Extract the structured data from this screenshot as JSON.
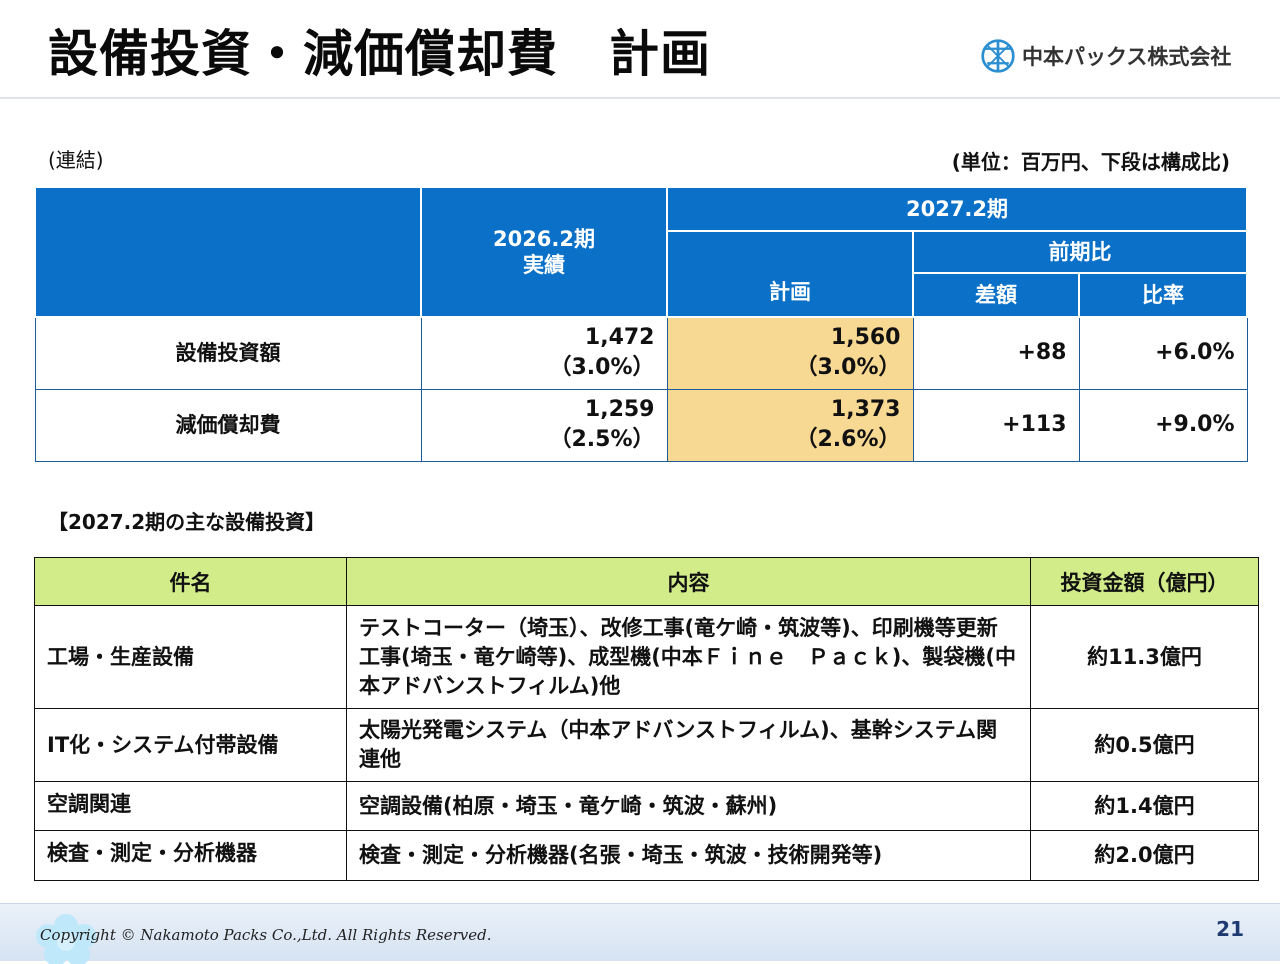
{
  "header": {
    "title": "設備投資・減価償却費　計画",
    "company": "中本パックス株式会社"
  },
  "notes": {
    "scope": "(連結)",
    "unit": "(単位：百万円、下段は構成比)"
  },
  "summary_table": {
    "col_actual": "2026.2期",
    "col_actual_sub": "実績",
    "col_plan_period": "2027.2期",
    "col_plan": "計画",
    "col_yoy": "前期比",
    "col_diff": "差額",
    "col_ratio": "比率",
    "rows": [
      {
        "label": "設備投資額",
        "actual": "1,472",
        "actual_pct": "（3.0%）",
        "plan": "1,560",
        "plan_pct": "（3.0%）",
        "diff": "+88",
        "ratio": "+6.0%"
      },
      {
        "label": "減価償却費",
        "actual": "1,259",
        "actual_pct": "（2.5%）",
        "plan": "1,373",
        "plan_pct": "（2.6%）",
        "diff": "+113",
        "ratio": "+9.0%"
      }
    ]
  },
  "investment_section": {
    "title": "【2027.2期の主な設備投資】",
    "headers": {
      "name": "件名",
      "content": "内容",
      "amount": "投資金額（億円）"
    },
    "rows": [
      {
        "name": "工場・生産設備",
        "content": "テストコーター（埼玉）、改修工事(竜ケ崎・筑波等)、印刷機等更新工事(埼玉・竜ケ崎等)、成型機(中本Ｆｉｎｅ　Ｐａｃｋ)、製袋機(中本アドバンストフィルム)他",
        "amount": "約11.3億円"
      },
      {
        "name": "IT化・システム付帯設備",
        "content": "太陽光発電システム（中本アドバンストフィルム)、基幹システム関連他",
        "amount": "約0.5億円"
      },
      {
        "name": "空調関連",
        "content": "空調設備(柏原・埼玉・竜ケ崎・筑波・蘇州)",
        "amount": "約1.4億円"
      },
      {
        "name": "検査・測定・分析機器",
        "content": "検査・測定・分析機器(名張・埼玉・筑波・技術開発等)",
        "amount": "約2.0億円"
      }
    ]
  },
  "footer": {
    "copyright": "Copyright © Nakamoto Packs Co.,Ltd. All Rights Reserved.",
    "page": "21"
  },
  "colors": {
    "header_blue": "#0a70c8",
    "highlight": "#f8d993",
    "green_header": "#d2ec8a"
  }
}
